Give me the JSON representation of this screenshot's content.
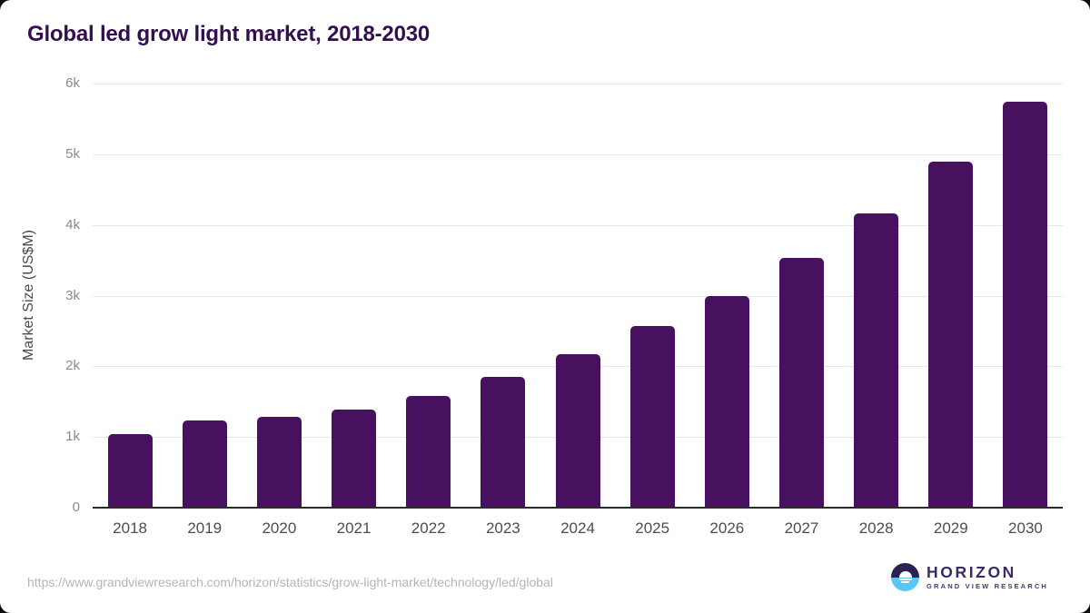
{
  "chart_data": {
    "type": "bar",
    "title": "Global led grow light market, 2018-2030",
    "categories": [
      "2018",
      "2019",
      "2020",
      "2021",
      "2022",
      "2023",
      "2024",
      "2025",
      "2026",
      "2027",
      "2028",
      "2029",
      "2030"
    ],
    "values": [
      1040,
      1230,
      1285,
      1390,
      1580,
      1850,
      2170,
      2565,
      3000,
      3535,
      4165,
      4890,
      5740
    ],
    "series_name": "Market Size",
    "xlabel": "",
    "ylabel": "Market Size (US$M)",
    "ylim": [
      0,
      6000
    ],
    "yticks": [
      {
        "value": 0,
        "label": "0"
      },
      {
        "value": 1000,
        "label": "1k"
      },
      {
        "value": 2000,
        "label": "2k"
      },
      {
        "value": 3000,
        "label": "3k"
      },
      {
        "value": 4000,
        "label": "4k"
      },
      {
        "value": 5000,
        "label": "5k"
      },
      {
        "value": 6000,
        "label": "6k"
      }
    ],
    "grid": "horizontal",
    "legend_position": "none",
    "bar_color": "#471160"
  },
  "colors": {
    "title": "#330f50",
    "bar": "#471160",
    "gridline": "#e6e6e6",
    "axis_line": "#2b2b2b",
    "y_tick": "#8a8a8a",
    "x_tick": "#4d4d4d",
    "url_text": "#b5b5b5"
  },
  "footer": {
    "source_url": "https://www.grandviewresearch.com/horizon/statistics/grow-light-market/technology/led/global",
    "logo": {
      "name": "HORIZON",
      "subtitle": "GRAND VIEW RESEARCH",
      "colors": {
        "circle_top": "#2d2153",
        "circle_bottom": "#5bc6f3",
        "name_text": "#3b2a63",
        "subtitle_text": "#4a3575"
      }
    }
  }
}
